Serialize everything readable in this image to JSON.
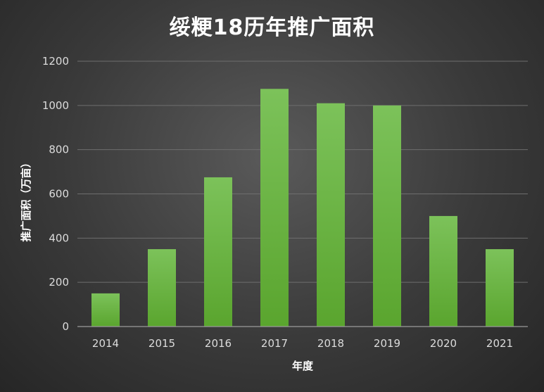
{
  "chart_data": {
    "type": "bar",
    "title": "绥粳18历年推广面积",
    "xlabel": "年度",
    "ylabel": "推广面积（万亩）",
    "categories": [
      "2014",
      "2015",
      "2016",
      "2017",
      "2018",
      "2019",
      "2020",
      "2021"
    ],
    "values": [
      150,
      350,
      675,
      1075,
      1010,
      1000,
      500,
      350
    ],
    "ylim": [
      0,
      1200
    ],
    "yticks": [
      "0",
      "200",
      "400",
      "600",
      "800",
      "1000",
      "1200"
    ],
    "grid": true,
    "bar_color": "#6db33f"
  }
}
